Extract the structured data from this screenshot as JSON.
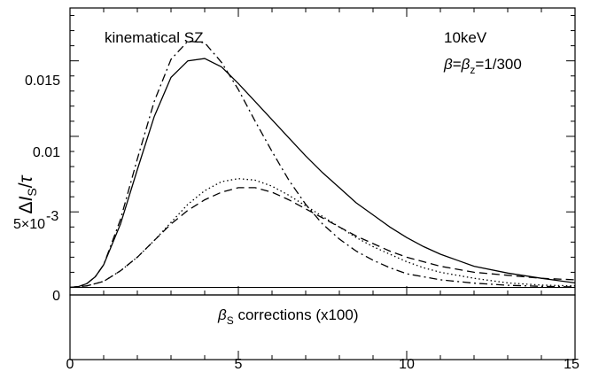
{
  "chart_data": {
    "type": "line",
    "xlim": [
      0,
      15
    ],
    "ylim_upper": [
      -0.0005,
      0.0185
    ],
    "ylim_lower": [
      -1,
      1
    ],
    "x_ticks": [
      0,
      5,
      10,
      15
    ],
    "x_tick_labels": [
      "0",
      "5",
      "10",
      "15"
    ],
    "y_ticks": [
      0,
      0.005,
      0.01,
      0.015
    ],
    "y_tick_labels": [
      "0",
      "5×10",
      "0.01",
      "0.015"
    ],
    "y_tick_exponent": "-3",
    "ylabel": {
      "delta": "Δ",
      "I": "I",
      "sub": "S",
      "slash": "/",
      "tau": "τ"
    },
    "annotations": {
      "left": "kinematical SZ",
      "right_line1": "10keV",
      "right_line2": {
        "beta": "β",
        "eq1": "=",
        "beta_z": "β",
        "sub_z": "z",
        "rest": "=1/300"
      }
    },
    "lower_panel_label": {
      "beta": "β",
      "sub": "S",
      "rest": " corrections (x100)"
    },
    "grid": false,
    "legend": "none",
    "series": [
      {
        "style": "solid",
        "x": [
          0,
          0.25,
          0.5,
          0.75,
          1,
          1.5,
          2,
          2.5,
          3,
          3.5,
          4,
          4.5,
          5,
          5.5,
          6,
          6.5,
          7,
          7.5,
          8,
          8.5,
          9,
          9.5,
          10,
          10.5,
          11,
          11.5,
          12,
          13,
          14,
          15
        ],
        "y": [
          0,
          5e-05,
          0.00025,
          0.0007,
          0.0015,
          0.0042,
          0.0078,
          0.0113,
          0.0139,
          0.015,
          0.01515,
          0.0146,
          0.0135,
          0.0123,
          0.0111,
          0.0099,
          0.0087,
          0.0076,
          0.0066,
          0.0056,
          0.0048,
          0.004,
          0.0033,
          0.0027,
          0.0022,
          0.0018,
          0.0014,
          0.00095,
          0.0006,
          0.0003
        ]
      },
      {
        "style": "dashdot",
        "x": [
          0,
          0.25,
          0.5,
          0.75,
          1,
          1.5,
          2,
          2.5,
          3,
          3.5,
          4,
          4.5,
          5,
          5.5,
          6,
          6.5,
          7,
          7.5,
          8,
          8.5,
          9,
          9.5,
          10,
          11,
          12,
          13,
          14,
          15
        ],
        "y": [
          0,
          5e-05,
          0.00025,
          0.0007,
          0.0015,
          0.0045,
          0.0085,
          0.0123,
          0.0151,
          0.0163,
          0.0162,
          0.0149,
          0.0131,
          0.011,
          0.009,
          0.0071,
          0.0055,
          0.0042,
          0.0032,
          0.0024,
          0.0018,
          0.0013,
          0.0009,
          0.0005,
          0.00028,
          0.00014,
          7e-05,
          3e-05
        ]
      },
      {
        "style": "dashed",
        "x": [
          0,
          0.5,
          1,
          1.5,
          2,
          2.5,
          3,
          3.5,
          4,
          4.5,
          5,
          5.5,
          6,
          6.5,
          7,
          7.5,
          8,
          8.5,
          9,
          9.5,
          10,
          10.5,
          11,
          12,
          13,
          14,
          15
        ],
        "y": [
          0,
          0.0001,
          0.0004,
          0.0011,
          0.002,
          0.0031,
          0.0042,
          0.0051,
          0.0058,
          0.0063,
          0.0066,
          0.0066,
          0.0063,
          0.0058,
          0.0052,
          0.0046,
          0.004,
          0.0034,
          0.0029,
          0.0024,
          0.002,
          0.0017,
          0.0014,
          0.001,
          0.0008,
          0.0006,
          0.0005
        ]
      },
      {
        "style": "dotted",
        "x": [
          0,
          0.5,
          1,
          1.5,
          2,
          2.5,
          3,
          3.5,
          4,
          4.5,
          5,
          5.5,
          6,
          6.5,
          7,
          7.5,
          8,
          8.5,
          9,
          9.5,
          10,
          10.5,
          11,
          12,
          13,
          14,
          15
        ],
        "y": [
          0,
          0.0001,
          0.0004,
          0.0011,
          0.002,
          0.0031,
          0.0043,
          0.0055,
          0.0064,
          0.007,
          0.0072,
          0.0071,
          0.0067,
          0.0061,
          0.0054,
          0.0047,
          0.004,
          0.0033,
          0.0027,
          0.0022,
          0.0017,
          0.0013,
          0.001,
          0.0006,
          0.0003,
          0.00015,
          0.0001
        ]
      }
    ]
  }
}
